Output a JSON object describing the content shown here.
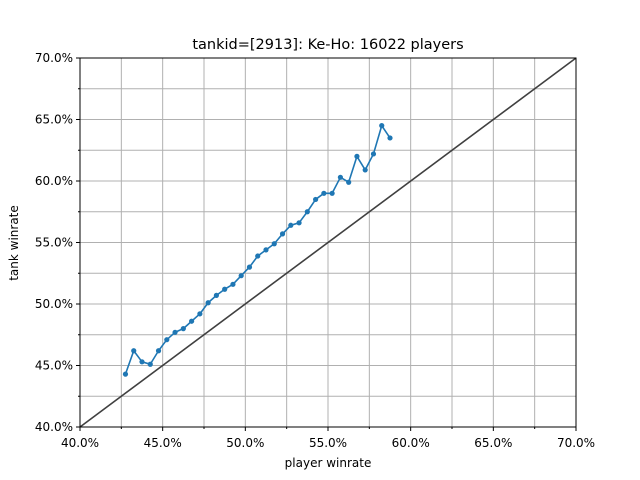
{
  "chart_data": {
    "type": "line",
    "title": "tankid=[2913]: Ke-Ho: 16022 players",
    "xlabel": "player winrate",
    "ylabel": "tank winrate",
    "xlim": [
      0.4,
      0.7
    ],
    "ylim": [
      0.4,
      0.7
    ],
    "grid": true,
    "x_ticks": [
      0.4,
      0.45,
      0.5,
      0.55,
      0.6,
      0.65,
      0.7
    ],
    "x_tick_labels": [
      "40.0%",
      "45.0%",
      "50.0%",
      "55.0%",
      "60.0%",
      "65.0%",
      "70.0%"
    ],
    "y_ticks": [
      0.4,
      0.45,
      0.5,
      0.55,
      0.6,
      0.65,
      0.7
    ],
    "y_tick_labels": [
      "40.0%",
      "45.0%",
      "50.0%",
      "55.0%",
      "60.0%",
      "65.0%",
      "70.0%"
    ],
    "colors": {
      "series": "#1f77b4",
      "reference": "#404040",
      "grid": "#b0b0b0"
    },
    "reference_line": {
      "x": [
        0.4,
        0.7
      ],
      "y": [
        0.4,
        0.7
      ]
    },
    "series": [
      {
        "x": [
          0.4275,
          0.4325,
          0.4375,
          0.4425,
          0.4475,
          0.4525,
          0.4575,
          0.4625,
          0.4675,
          0.4725,
          0.4775,
          0.4825,
          0.4875,
          0.4925,
          0.4975,
          0.5025,
          0.5075,
          0.5125,
          0.5175,
          0.5225,
          0.5275,
          0.5325,
          0.5375,
          0.5425,
          0.5475,
          0.5525,
          0.5575,
          0.5625,
          0.5675,
          0.5725,
          0.5775,
          0.5825,
          0.5875
        ],
        "y": [
          0.443,
          0.462,
          0.453,
          0.451,
          0.462,
          0.471,
          0.477,
          0.48,
          0.486,
          0.492,
          0.501,
          0.507,
          0.512,
          0.516,
          0.523,
          0.53,
          0.539,
          0.544,
          0.549,
          0.557,
          0.564,
          0.566,
          0.575,
          0.585,
          0.59,
          0.59,
          0.603,
          0.599,
          0.62,
          0.609,
          0.622,
          0.645,
          0.635
        ]
      }
    ]
  }
}
